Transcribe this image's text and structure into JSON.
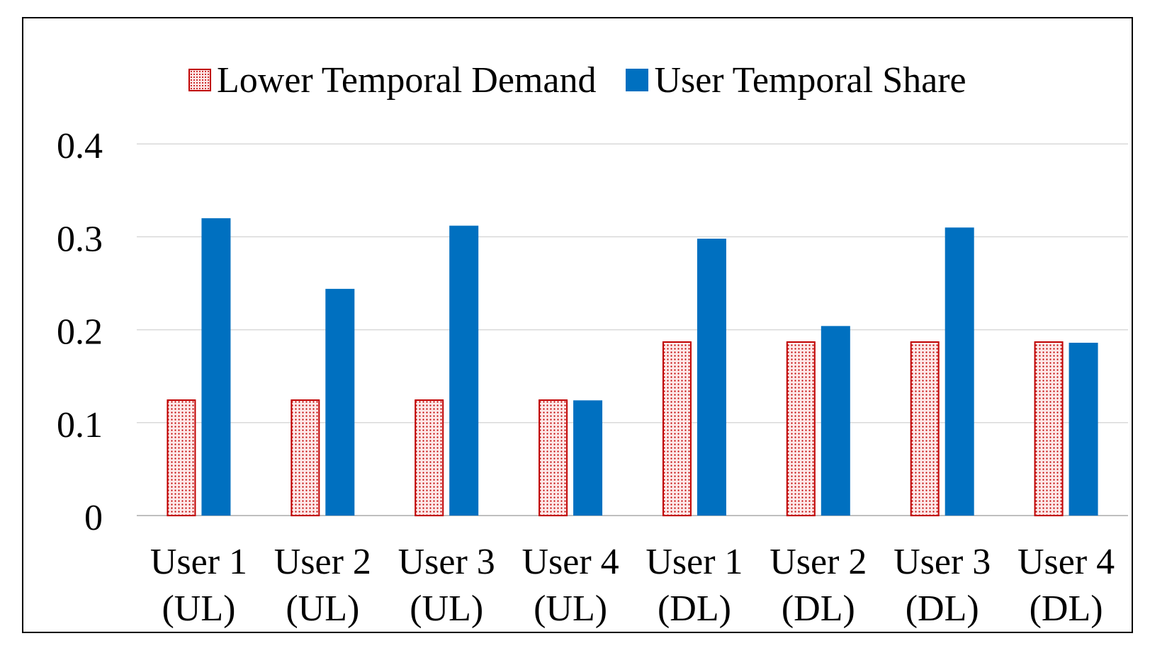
{
  "chart_data": {
    "type": "bar",
    "categories": [
      [
        "User 1",
        "(UL)"
      ],
      [
        "User 2",
        "(UL)"
      ],
      [
        "User 3",
        "(UL)"
      ],
      [
        "User 4",
        "(UL)"
      ],
      [
        "User 1",
        "(DL)"
      ],
      [
        "User 2",
        "(DL)"
      ],
      [
        "User 3",
        "(DL)"
      ],
      [
        "User 4",
        "(DL)"
      ]
    ],
    "series": [
      {
        "name": "Lower Temporal Demand",
        "values": [
          0.125,
          0.125,
          0.125,
          0.125,
          0.1875,
          0.1875,
          0.1875,
          0.1875
        ],
        "color": "#c00000",
        "fill": "dotted"
      },
      {
        "name": "User Temporal Share",
        "values": [
          0.32,
          0.244,
          0.312,
          0.124,
          0.298,
          0.204,
          0.31,
          0.186
        ],
        "color": "#0070c0",
        "fill": "solid"
      }
    ],
    "yticks": [
      "0",
      "0.1",
      "0.2",
      "0.3",
      "0.4"
    ],
    "ylim": [
      0,
      0.4
    ],
    "grid": true,
    "legend": "top"
  }
}
